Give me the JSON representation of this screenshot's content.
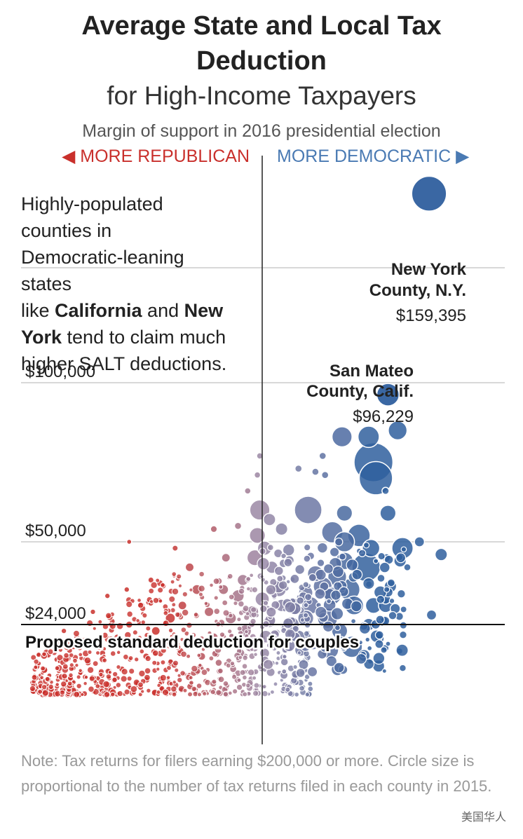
{
  "header": {
    "title_line1": "Average State and Local Tax",
    "title_line2": "Deduction",
    "subtitle": "for High-Income Taxpayers",
    "margin_label": "Margin of support in 2016 presidential election",
    "rep_label": "◀ MORE REPUBLICAN",
    "dem_label": "MORE DEMOCRATIC ▶"
  },
  "annotation": {
    "line1": "Highly-populated",
    "line2": "counties in",
    "line3": "Democratic-leaning",
    "line4": "states",
    "line5_pre": "like ",
    "line5_bold1": "California",
    "line5_mid": " and ",
    "line5_bold2": "New",
    "line6_bold": "York",
    "line6_post": " tend to claim much",
    "line7": "higher SALT deductions."
  },
  "note": "Note: Tax returns for filers earning $200,000 or more. Circle size is proportional to the number of tax returns filed in each county in 2015.",
  "watermark": "美国华人",
  "colors": {
    "republican": "#c9302c",
    "democratic": "#2f5f9e",
    "neutral": "#9a8aa8",
    "gridline": "#cccccc",
    "axis": "#222222"
  },
  "chart_data": {
    "type": "scatter",
    "title": "Average State and Local Tax Deduction",
    "subtitle": "for High-Income Taxpayers",
    "xlabel": "Margin of support in 2016 presidential election",
    "x_direction_labels": [
      "MORE REPUBLICAN",
      "MORE DEMOCRATIC"
    ],
    "x_range": [
      -100,
      100
    ],
    "ylim": [
      0,
      170000
    ],
    "y_ticks": [
      {
        "value": 24000,
        "label": "$24,000"
      },
      {
        "value": 50000,
        "label": "$50,000"
      },
      {
        "value": 100000,
        "label": "$100,000"
      }
    ],
    "reference_line": {
      "value": 24000,
      "label": "Proposed standard deduction for couples"
    },
    "highlighted_points": [
      {
        "name_line1": "New York",
        "name_line2": "County, N.Y.",
        "label": "$159,395",
        "x": 69,
        "y": 159395,
        "size": 24000
      },
      {
        "name_line1": "San Mateo",
        "name_line2": "County, Calif.",
        "label": "$96,229",
        "x": 52,
        "y": 96229,
        "size": 10000
      }
    ],
    "points": [
      {
        "x": 44,
        "y": 83000,
        "s": 9000
      },
      {
        "x": 33,
        "y": 83000,
        "s": 8000
      },
      {
        "x": 56,
        "y": 85000,
        "s": 7000
      },
      {
        "x": 46,
        "y": 75000,
        "s": 30000
      },
      {
        "x": 47,
        "y": 70000,
        "s": 22000
      },
      {
        "x": 19,
        "y": 60000,
        "s": 15000
      },
      {
        "x": 52,
        "y": 59000,
        "s": 5000
      },
      {
        "x": 34,
        "y": 59000,
        "s": 5000
      },
      {
        "x": 40,
        "y": 52000,
        "s": 10000
      },
      {
        "x": 29,
        "y": 53000,
        "s": 9000
      },
      {
        "x": 34,
        "y": 50000,
        "s": 8000
      },
      {
        "x": 45,
        "y": 48000,
        "s": 6000
      },
      {
        "x": 58,
        "y": 48000,
        "s": 9000
      },
      {
        "x": 43,
        "y": 42000,
        "s": 16000
      },
      {
        "x": 34,
        "y": 44000,
        "s": 6000
      },
      {
        "x": 31,
        "y": 39000,
        "s": 7000
      },
      {
        "x": 36,
        "y": 35000,
        "s": 9000
      },
      {
        "x": 29,
        "y": 33000,
        "s": 6000
      },
      {
        "x": 25,
        "y": 36000,
        "s": 7000
      },
      {
        "x": 22,
        "y": 40000,
        "s": 5000
      },
      {
        "x": 18,
        "y": 34000,
        "s": 4000
      },
      {
        "x": 20,
        "y": 30000,
        "s": 6000
      },
      {
        "x": 38,
        "y": 30000,
        "s": 7000
      },
      {
        "x": 46,
        "y": 30000,
        "s": 5000
      },
      {
        "x": 51,
        "y": 30000,
        "s": 4000
      },
      {
        "x": 27,
        "y": 26000,
        "s": 8000
      },
      {
        "x": 18,
        "y": 26000,
        "s": 5000
      },
      {
        "x": 13,
        "y": 30000,
        "s": 4000
      },
      {
        "x": 8,
        "y": 30000,
        "s": 3000
      },
      {
        "x": 32,
        "y": 22000,
        "s": 5000
      },
      {
        "x": 15,
        "y": 20000,
        "s": 4000
      },
      {
        "x": 12,
        "y": 24000,
        "s": 5000
      },
      {
        "x": 28,
        "y": 16000,
        "s": 6000
      },
      {
        "x": 37,
        "y": 17000,
        "s": 9000
      },
      {
        "x": 21,
        "y": 18000,
        "s": 3000
      },
      {
        "x": 16,
        "y": 16000,
        "s": 3000
      },
      {
        "x": 57,
        "y": 44000,
        "s": 3000
      },
      {
        "x": 74,
        "y": 46000,
        "s": 3000
      },
      {
        "x": 65,
        "y": 50000,
        "s": 2000
      },
      {
        "x": 53,
        "y": 36000,
        "s": 3000
      },
      {
        "x": 51,
        "y": 32000,
        "s": 2000
      },
      {
        "x": 55,
        "y": 29000,
        "s": 2000
      },
      {
        "x": 70,
        "y": 27000,
        "s": 2000
      },
      {
        "x": 44,
        "y": 24000,
        "s": 3000
      },
      {
        "x": 50,
        "y": 25000,
        "s": 2000
      },
      {
        "x": 15,
        "y": 73000,
        "s": 1000
      },
      {
        "x": 22,
        "y": 72000,
        "s": 1000
      },
      {
        "x": 25,
        "y": 77000,
        "s": 1000
      },
      {
        "x": 26,
        "y": 71000,
        "s": 1000
      },
      {
        "x": 51,
        "y": 66000,
        "s": 1000
      },
      {
        "x": 60,
        "y": 42000,
        "s": 1000
      },
      {
        "x": -1,
        "y": 60000,
        "s": 8000
      },
      {
        "x": -2,
        "y": 52000,
        "s": 5000
      },
      {
        "x": 1,
        "y": 48000,
        "s": 4000
      },
      {
        "x": 3,
        "y": 57000,
        "s": 3000
      },
      {
        "x": 8,
        "y": 54000,
        "s": 3000
      },
      {
        "x": -3,
        "y": 45000,
        "s": 5000
      },
      {
        "x": 4,
        "y": 42000,
        "s": 3000
      },
      {
        "x": 7,
        "y": 35000,
        "s": 4000
      },
      {
        "x": 0,
        "y": 32000,
        "s": 4000
      },
      {
        "x": -4,
        "y": 28000,
        "s": 3000
      },
      {
        "x": 3,
        "y": 25000,
        "s": 3000
      },
      {
        "x": -8,
        "y": 38000,
        "s": 2500
      },
      {
        "x": -10,
        "y": 33000,
        "s": 3000
      },
      {
        "x": -13,
        "y": 26000,
        "s": 2500
      },
      {
        "x": -7,
        "y": 22000,
        "s": 3000
      },
      {
        "x": -5,
        "y": 17000,
        "s": 2000
      },
      {
        "x": 1,
        "y": 15000,
        "s": 2000
      },
      {
        "x": -15,
        "y": 45000,
        "s": 1500
      },
      {
        "x": -10,
        "y": 55000,
        "s": 1000
      },
      {
        "x": -1,
        "y": 77000,
        "s": 800
      },
      {
        "x": -2,
        "y": 71000,
        "s": 800
      },
      {
        "x": -6,
        "y": 66000,
        "s": 800
      },
      {
        "x": -30,
        "y": 42000,
        "s": 1500
      },
      {
        "x": -27,
        "y": 35000,
        "s": 2000
      },
      {
        "x": -33,
        "y": 30000,
        "s": 1500
      },
      {
        "x": -38,
        "y": 26000,
        "s": 2000
      },
      {
        "x": -44,
        "y": 22000,
        "s": 1500
      },
      {
        "x": -50,
        "y": 30000,
        "s": 1000
      },
      {
        "x": -55,
        "y": 24000,
        "s": 1000
      },
      {
        "x": -60,
        "y": 20000,
        "s": 800
      },
      {
        "x": -66,
        "y": 15000,
        "s": 800
      },
      {
        "x": -72,
        "y": 12000,
        "s": 800
      },
      {
        "x": -78,
        "y": 17000,
        "s": 700
      },
      {
        "x": -75,
        "y": 9000,
        "s": 700
      },
      {
        "x": -68,
        "y": 7000,
        "s": 700
      },
      {
        "x": -58,
        "y": 10000,
        "s": 800
      },
      {
        "x": -48,
        "y": 14000,
        "s": 900
      },
      {
        "x": -40,
        "y": 18000,
        "s": 1000
      },
      {
        "x": -34,
        "y": 15000,
        "s": 900
      },
      {
        "x": -25,
        "y": 14000,
        "s": 1200
      },
      {
        "x": -20,
        "y": 20000,
        "s": 1500
      },
      {
        "x": -18,
        "y": 12000,
        "s": 1000
      },
      {
        "x": -12,
        "y": 10000,
        "s": 1000
      },
      {
        "x": -30,
        "y": 8000,
        "s": 800
      },
      {
        "x": -42,
        "y": 7000,
        "s": 700
      },
      {
        "x": -52,
        "y": 5000,
        "s": 700
      },
      {
        "x": -62,
        "y": 25000,
        "s": 700
      },
      {
        "x": -70,
        "y": 28000,
        "s": 600
      },
      {
        "x": -82,
        "y": 22000,
        "s": 600
      },
      {
        "x": -85,
        "y": 13000,
        "s": 600
      },
      {
        "x": -46,
        "y": 38000,
        "s": 700
      },
      {
        "x": -56,
        "y": 35000,
        "s": 600
      },
      {
        "x": -64,
        "y": 33000,
        "s": 600
      },
      {
        "x": -36,
        "y": 48000,
        "s": 700
      },
      {
        "x": -20,
        "y": 54000,
        "s": 900
      },
      {
        "x": -55,
        "y": 50000,
        "s": 500
      },
      {
        "x": -88,
        "y": 8000,
        "s": 500
      },
      {
        "x": -80,
        "y": 4000,
        "s": 500
      },
      {
        "x": -15,
        "y": 4000,
        "s": 800
      },
      {
        "x": -22,
        "y": 28000,
        "s": 1800
      },
      {
        "x": -16,
        "y": 35000,
        "s": 2000
      },
      {
        "x": -9,
        "y": 15000,
        "s": 1500
      }
    ]
  }
}
